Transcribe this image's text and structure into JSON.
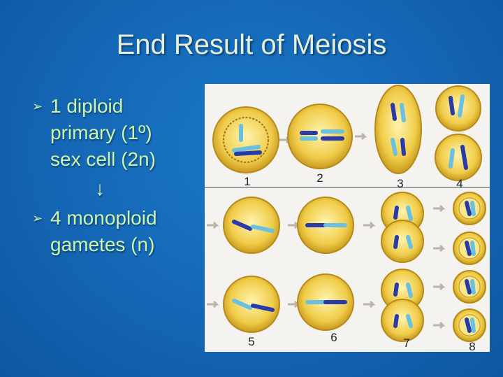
{
  "slide": {
    "title": "End Result of Meiosis",
    "bullets": [
      {
        "lines": [
          "1 diploid",
          "primary (1º)",
          "sex cell (2n)"
        ]
      },
      {
        "lines": [
          "4 monoploid",
          "gametes (n)"
        ]
      }
    ],
    "arrow": "↓",
    "bullet_marker": "➢"
  },
  "figure": {
    "stage_labels": [
      "1",
      "2",
      "3",
      "4",
      "5",
      "6",
      "7",
      "8"
    ],
    "colors": {
      "background": "#1466b4",
      "text": "#cdf5a8",
      "cell": "#e8c040",
      "chromosome_dark": "#2a3aa8",
      "chromosome_light": "#6ac0e0"
    }
  }
}
